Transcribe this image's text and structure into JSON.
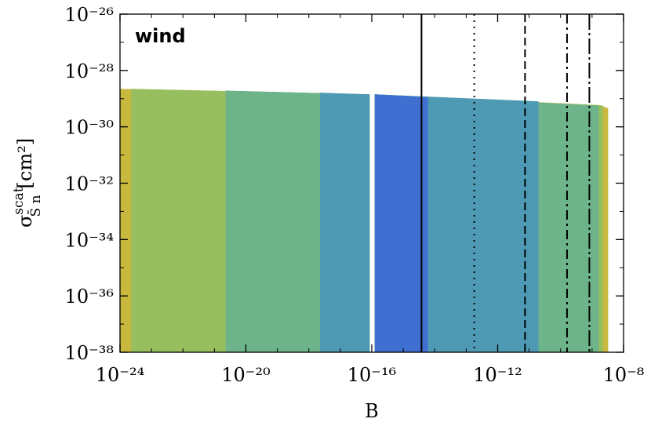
{
  "chart_data": {
    "type": "area",
    "xlabel": "B",
    "ylabel": {
      "symbol": "σ",
      "superscript": "scat",
      "subscript": "S̄ n",
      "unit": "[cm²]"
    },
    "annotation": "wind",
    "xlog": true,
    "ylog": true,
    "xlim": [
      1e-24,
      1e-08
    ],
    "ylim": [
      1e-38,
      1e-26
    ],
    "xticks": [
      {
        "value": 1e-24,
        "label": "10⁻²⁴"
      },
      {
        "value": 1e-20,
        "label": "10⁻²⁰"
      },
      {
        "value": 1e-16,
        "label": "10⁻¹⁶"
      },
      {
        "value": 1e-12,
        "label": "10⁻¹²"
      },
      {
        "value": 1e-08,
        "label": "10⁻⁸"
      }
    ],
    "yticks": [
      {
        "value": 1e-38,
        "label": "10⁻³⁸"
      },
      {
        "value": 1e-36,
        "label": "10⁻³⁶"
      },
      {
        "value": 1e-34,
        "label": "10⁻³⁴"
      },
      {
        "value": 1e-32,
        "label": "10⁻³²"
      },
      {
        "value": 1e-30,
        "label": "10⁻³⁰"
      },
      {
        "value": 1e-28,
        "label": "10⁻²⁸"
      },
      {
        "value": 1e-26,
        "label": "10⁻²⁶"
      }
    ],
    "series": [
      {
        "color": "#c8b83e",
        "x": [
          1e-24,
          8.5e-17,
          null,
          1.26e-16,
          1.8e-09,
          3.2e-09
        ],
        "values": [
          2.2e-29,
          1.4e-29,
          null,
          1.4e-29,
          5.8e-30,
          4.5e-30
        ]
      },
      {
        "color": "#98bf5f",
        "x": [
          2.3e-24,
          8.5e-17,
          null,
          1.26e-16,
          2.2e-09
        ],
        "values": [
          2.2e-29,
          1.4e-29,
          null,
          1.4e-29,
          5.6e-30
        ]
      },
      {
        "color": "#6db48a",
        "x": [
          2.3e-21,
          8.5e-17,
          null,
          1.26e-16,
          1.6e-09
        ],
        "values": [
          1.9e-29,
          1.4e-29,
          null,
          1.4e-29,
          5.6e-30
        ]
      },
      {
        "color": "#4e9ab4",
        "x": [
          2.3e-18,
          8.5e-17,
          null,
          1.26e-16,
          1.95e-11
        ],
        "values": [
          1.6e-29,
          1.4e-29,
          null,
          1.4e-29,
          7.9e-30
        ]
      },
      {
        "color": "#3f6fd0",
        "x": [
          1.26e-16,
          6e-15
        ],
        "values": [
          1.4e-29,
          1.1e-29
        ]
      }
    ],
    "vlines": [
      {
        "x": 3.8e-15,
        "style": "solid"
      },
      {
        "x": 1.8e-13,
        "style": "dotted"
      },
      {
        "x": 7.4e-12,
        "style": "dashed"
      },
      {
        "x": 1.6e-10,
        "style": "dashdot"
      },
      {
        "x": 8.2e-10,
        "style": "longdashdot"
      }
    ]
  }
}
